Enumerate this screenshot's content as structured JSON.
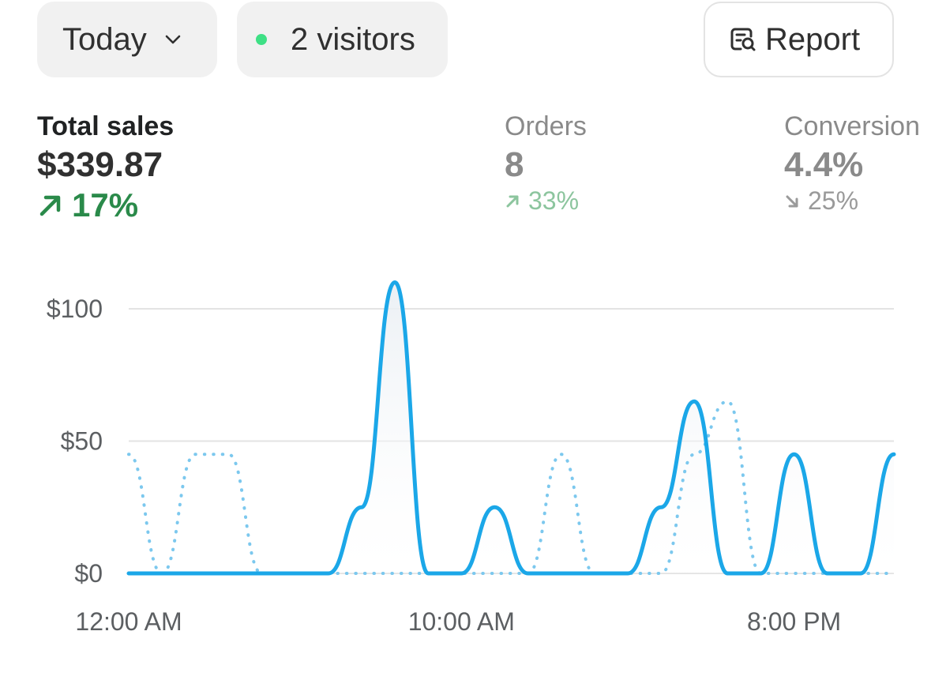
{
  "filters": {
    "date_label": "Today",
    "visitors_label": "2 visitors",
    "report_label": "Report"
  },
  "metrics": {
    "sales": {
      "label": "Total sales",
      "value": "$339.87",
      "delta": "17%",
      "direction": "up"
    },
    "orders": {
      "label": "Orders",
      "value": "8",
      "delta": "33%",
      "direction": "up"
    },
    "conversion": {
      "label": "Conversion",
      "value": "4.4%",
      "delta": "25%",
      "direction": "down"
    }
  },
  "colors": {
    "accent": "#1ba7e8",
    "positive": "#2a8a4a",
    "live_dot": "#3ee085"
  },
  "chart_data": {
    "type": "line",
    "ylim": [
      0,
      100
    ],
    "yticks": [
      "$0",
      "$50",
      "$100"
    ],
    "xticks": [
      "12:00 AM",
      "10:00 AM",
      "8:00 PM"
    ],
    "x": [
      "12:00 AM",
      "1:00 AM",
      "2:00 AM",
      "3:00 AM",
      "4:00 AM",
      "5:00 AM",
      "6:00 AM",
      "7:00 AM",
      "8:00 AM",
      "9:00 AM",
      "10:00 AM",
      "11:00 AM",
      "12:00 PM",
      "1:00 PM",
      "2:00 PM",
      "3:00 PM",
      "4:00 PM",
      "5:00 PM",
      "6:00 PM",
      "7:00 PM",
      "8:00 PM",
      "9:00 PM",
      "10:00 PM",
      "11:00 PM"
    ],
    "series": [
      {
        "style": "solid",
        "values": [
          0,
          0,
          0,
          0,
          0,
          0,
          0,
          25,
          110,
          0,
          0,
          25,
          0,
          0,
          0,
          0,
          25,
          65,
          0,
          0,
          45,
          0,
          0,
          45
        ]
      },
      {
        "style": "dotted",
        "values": [
          45,
          0,
          45,
          45,
          0,
          0,
          0,
          0,
          0,
          0,
          0,
          0,
          0,
          45,
          0,
          0,
          0,
          45,
          65,
          0,
          0,
          0,
          0,
          0
        ]
      }
    ],
    "grid": true
  }
}
